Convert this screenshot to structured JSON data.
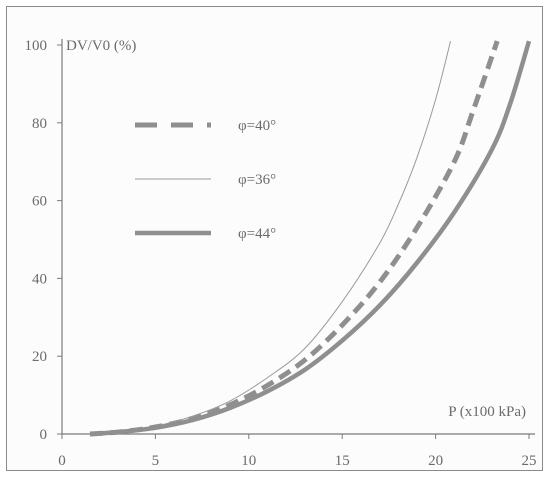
{
  "chart_data": {
    "type": "line",
    "ylabel": "DV/V0 (%)",
    "xlabel": "P (x100 kPa)",
    "xlim": [
      0,
      25
    ],
    "ylim": [
      0,
      100
    ],
    "xticks": [
      "0",
      "5",
      "10",
      "15",
      "20",
      "25"
    ],
    "yticks": [
      "0",
      "20",
      "40",
      "60",
      "80",
      "100"
    ],
    "grid": false,
    "legend_position": "upper-left",
    "series": [
      {
        "name": "φ=40°",
        "style": "dashed-thick",
        "color": "#8f8f8f",
        "x": [
          1.5,
          3,
          5,
          7,
          9,
          11,
          13,
          15,
          17,
          19,
          21,
          22,
          23.3
        ],
        "y": [
          0,
          0.5,
          1.8,
          4,
          7.5,
          12.5,
          19,
          28,
          39,
          53,
          70,
          83,
          101
        ]
      },
      {
        "name": "φ=36°",
        "style": "thin-solid",
        "color": "#9a9a9a",
        "x": [
          1.5,
          3,
          5,
          7,
          9,
          11,
          13,
          15,
          17,
          18,
          19,
          20,
          20.8
        ],
        "y": [
          0,
          0.6,
          2,
          4.6,
          8.5,
          14.5,
          22,
          34,
          49,
          59,
          71,
          86,
          101
        ]
      },
      {
        "name": "φ=44°",
        "style": "solid-thick",
        "color": "#8f8f8f",
        "x": [
          1.5,
          3,
          5,
          7,
          9,
          11,
          13,
          15,
          17,
          19,
          21,
          23,
          24,
          25
        ],
        "y": [
          0,
          0.5,
          1.6,
          3.6,
          6.7,
          11,
          16.5,
          24,
          33,
          44,
          57,
          73,
          85,
          101
        ]
      }
    ]
  }
}
